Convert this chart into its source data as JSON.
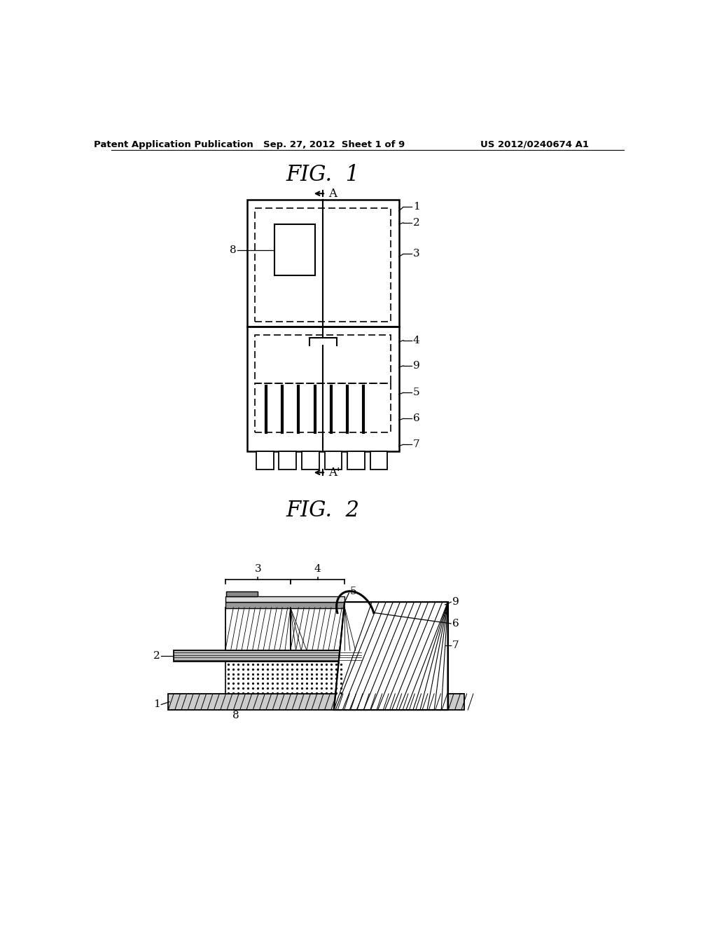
{
  "bg_color": "#ffffff",
  "header_left": "Patent Application Publication",
  "header_mid": "Sep. 27, 2012  Sheet 1 of 9",
  "header_right": "US 2012/0240674 A1",
  "fig1_title": "FIG.  1",
  "fig2_title": "FIG.  2"
}
